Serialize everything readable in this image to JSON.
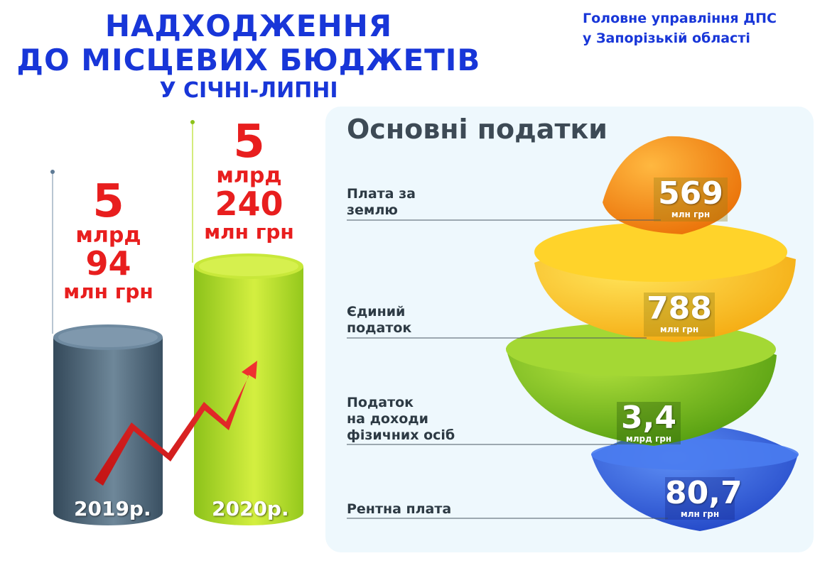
{
  "header": {
    "line1": "НАДХОДЖЕННЯ",
    "line2": "ДО МІСЦЕВИХ БЮДЖЕТІВ",
    "line3": "У СІЧНІ-ЛИПНІ",
    "agency1": "Головне управління ДПС",
    "agency2": "у Запорізькій області"
  },
  "chart_data": [
    {
      "type": "bar",
      "categories": [
        "2019р.",
        "2020р."
      ],
      "values": [
        5.094,
        5.24
      ],
      "value_labels": [
        {
          "line1": "5",
          "line2": "млрд",
          "line3": "94",
          "line4": "млн грн"
        },
        {
          "line1": "5",
          "line2": "млрд",
          "line3": "240",
          "line4": "млн грн"
        }
      ],
      "colors": [
        "#4f6b7f",
        "#b8de24"
      ]
    },
    {
      "type": "table",
      "title": "Основні податки",
      "rows": [
        {
          "label": "Плата за землю",
          "label_lines": [
            "Плата за",
            "землю"
          ],
          "value": "569",
          "unit": "млн грн",
          "color": "#f7930e"
        },
        {
          "label": "Єдиний податок",
          "label_lines": [
            "Єдиний",
            "податок"
          ],
          "value": "788",
          "unit": "млн грн",
          "color": "#fcc917"
        },
        {
          "label": "Податок на доходи фізичних осіб",
          "label_lines": [
            "Податок",
            "на доходи",
            "фізичних осіб"
          ],
          "value": "3,4",
          "unit": "млрд грн",
          "color": "#7cc21a"
        },
        {
          "label": "Рентна плата",
          "label_lines": [
            "Рентна плата"
          ],
          "value": "80,7",
          "unit": "млн грн",
          "color": "#2e5fe0"
        }
      ]
    }
  ]
}
